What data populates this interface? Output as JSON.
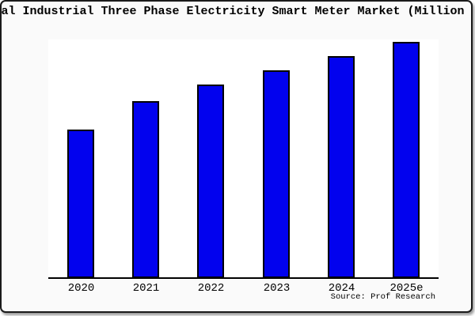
{
  "source": "Source: Prof Research",
  "chart_data": {
    "type": "bar",
    "title": "Global Industrial Three Phase Electricity Smart Meter Market (Million USD)",
    "categories": [
      "2020",
      "2021",
      "2022",
      "2023",
      "2024",
      "2025e"
    ],
    "values": [
      63,
      75,
      82,
      88,
      94,
      100
    ],
    "values_note": "relative estimates; y-axis has no visible tick labels, scaled so 2025e = 100",
    "xlabel": "",
    "ylabel": "",
    "ylim": [
      0,
      100
    ],
    "grid": false,
    "legend": false,
    "y_axis_visible": false,
    "bar_fill_color": "#0202ee",
    "bar_edge_color": "#000000",
    "plot_background": "#ffffff",
    "figure_background": "#fafafa"
  }
}
